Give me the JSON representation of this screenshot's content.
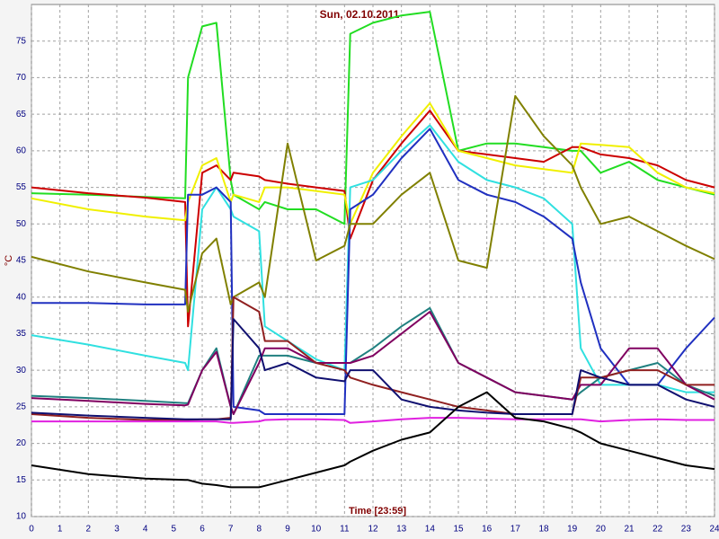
{
  "chart_data": {
    "type": "line",
    "title": "Sun, 02.10.2011",
    "x_label": "Time [23:59]",
    "y_label": "°C",
    "x": [
      0,
      2,
      4,
      5.4,
      5.5,
      6,
      6.5,
      7,
      7.1,
      8,
      8.2,
      9,
      10,
      11,
      11.2,
      12,
      13,
      14,
      15,
      16,
      17,
      18,
      19,
      19.3,
      20,
      21,
      22,
      23,
      24
    ],
    "series": [
      {
        "color": "#22dd22",
        "values": [
          54.2,
          54,
          53.7,
          53.5,
          70,
          77,
          77.5,
          56,
          54,
          52,
          53,
          52,
          52,
          50,
          76,
          77.5,
          78.5,
          79,
          60,
          61,
          61,
          60.5,
          60,
          60,
          57,
          58.5,
          56,
          55,
          54
        ]
      },
      {
        "color": "#cc0000",
        "values": [
          55,
          54.2,
          53.6,
          53,
          36,
          57,
          58,
          56,
          57,
          56.5,
          56,
          55.5,
          55,
          54.5,
          48,
          56,
          61,
          65.5,
          60,
          59.5,
          59,
          58.5,
          60.5,
          60.5,
          59.5,
          59,
          58,
          56,
          55
        ]
      },
      {
        "color": "#f0f000",
        "values": [
          53.5,
          52,
          51,
          50.5,
          53,
          58,
          59,
          53,
          54,
          53,
          55,
          55,
          54.5,
          54,
          50,
          57,
          62,
          66.5,
          60,
          59,
          58,
          57.5,
          57,
          61,
          60.8,
          60.5,
          57,
          55,
          54.2
        ]
      },
      {
        "color": "#30e0e0",
        "values": [
          34.8,
          33.5,
          32,
          31,
          30,
          52,
          55,
          52,
          51,
          49,
          36,
          34,
          31.5,
          30,
          55,
          56,
          60,
          63.5,
          58.5,
          56,
          55,
          53.5,
          50,
          33,
          28,
          28,
          28,
          27,
          27
        ]
      },
      {
        "color": "#2030c0",
        "values": [
          39.2,
          39.2,
          39,
          39,
          54,
          54,
          55,
          53,
          25,
          24.5,
          24,
          24,
          24,
          24,
          52,
          54,
          59,
          63,
          56,
          54,
          53,
          51,
          48,
          42,
          33,
          28,
          28,
          33,
          37.2
        ]
      },
      {
        "color": "#808000",
        "values": [
          45.5,
          43.5,
          42,
          41,
          38,
          46,
          48,
          39,
          40,
          42,
          40,
          61,
          45,
          47,
          50,
          50,
          54,
          57,
          45,
          44,
          67.5,
          62,
          58,
          55,
          50,
          51,
          49,
          47,
          45.2
        ]
      },
      {
        "color": "#208080",
        "values": [
          26.5,
          26.2,
          25.8,
          25.5,
          25.5,
          30,
          33,
          25,
          24,
          32,
          32,
          32,
          31,
          31,
          31,
          33,
          36,
          38.5,
          31,
          29,
          27,
          26.5,
          26,
          27,
          29,
          30,
          31,
          28,
          26.5
        ]
      },
      {
        "color": "#800060",
        "values": [
          26.2,
          25.8,
          25.4,
          25.2,
          25.3,
          30,
          32.5,
          25,
          24,
          31,
          33,
          33,
          31,
          31,
          31,
          32,
          35,
          38,
          31,
          29,
          27,
          26.5,
          26,
          28,
          28,
          33,
          33,
          28,
          26
        ]
      },
      {
        "color": "#902020",
        "values": [
          24,
          23.5,
          23.2,
          23.2,
          23.2,
          23.3,
          23.3,
          23.5,
          40,
          38,
          34,
          34,
          31,
          30,
          29,
          28,
          27,
          26,
          25,
          24.5,
          24,
          24,
          24,
          29,
          29,
          30,
          30,
          28,
          28
        ]
      },
      {
        "color": "#101070",
        "values": [
          24.2,
          23.8,
          23.5,
          23.3,
          23.3,
          23.3,
          23.3,
          23.3,
          37,
          33,
          30,
          31,
          29,
          28.5,
          30,
          30,
          26,
          25,
          24.5,
          24.2,
          24,
          24,
          24,
          30,
          29,
          28,
          28,
          26,
          25
        ]
      },
      {
        "color": "#e020e0",
        "values": [
          23,
          23,
          23,
          23,
          23,
          23,
          23,
          22.8,
          22.8,
          23,
          23.2,
          23.3,
          23.3,
          23.2,
          22.8,
          23,
          23.3,
          23.5,
          23.5,
          23.4,
          23.3,
          23.3,
          23.3,
          23.3,
          23,
          23.2,
          23.3,
          23.2,
          23.2
        ]
      },
      {
        "color": "#000000",
        "values": [
          17,
          15.8,
          15.2,
          15,
          15,
          14.5,
          14.3,
          14,
          14,
          14,
          14.2,
          15,
          16,
          17,
          17.5,
          19,
          20.5,
          21.5,
          25,
          27,
          23.5,
          23,
          22,
          21.5,
          20,
          19,
          18,
          17,
          16.5
        ]
      }
    ],
    "xlim": [
      0,
      24
    ],
    "xticks": [
      0,
      1,
      2,
      3,
      4,
      5,
      6,
      7,
      8,
      9,
      10,
      11,
      12,
      13,
      14,
      15,
      16,
      17,
      18,
      19,
      20,
      21,
      22,
      23,
      24
    ],
    "ylim": [
      10,
      80
    ],
    "yticks": [
      10,
      15,
      20,
      25,
      30,
      35,
      40,
      45,
      50,
      55,
      60,
      65,
      70,
      75
    ],
    "grid": true
  }
}
